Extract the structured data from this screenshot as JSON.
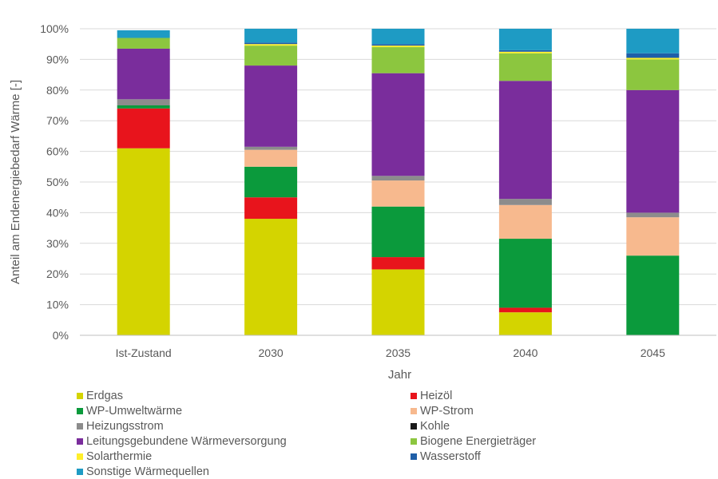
{
  "chart_data": {
    "type": "bar",
    "stacked": true,
    "title": "",
    "xlabel": "Jahr",
    "ylabel": "Anteil am Endenergiebedarf Wärme [-]",
    "ylim": [
      0,
      100
    ],
    "yticks": [
      "0%",
      "10%",
      "20%",
      "30%",
      "40%",
      "50%",
      "60%",
      "70%",
      "80%",
      "90%",
      "100%"
    ],
    "grid": true,
    "legend_position": "bottom",
    "categories": [
      "Ist-Zustand",
      "2030",
      "2035",
      "2040",
      "2045"
    ],
    "series": [
      {
        "name": "Erdgas",
        "color": "#d4d400",
        "values": [
          61,
          38,
          21.5,
          7.5,
          0
        ]
      },
      {
        "name": "Heizöl",
        "color": "#e8141c",
        "values": [
          13,
          7,
          4,
          1.5,
          0
        ]
      },
      {
        "name": "WP-Umweltwärme",
        "color": "#0b9a3c",
        "values": [
          1,
          10,
          16.5,
          22.5,
          26
        ]
      },
      {
        "name": "WP-Strom",
        "color": "#f7b98e",
        "values": [
          0,
          5.5,
          8.5,
          11,
          12.5
        ]
      },
      {
        "name": "Heizungsstrom",
        "color": "#8c8c8c",
        "values": [
          2,
          1,
          1.5,
          2,
          1.5
        ]
      },
      {
        "name": "Kohle",
        "color": "#1a1a1a",
        "values": [
          0,
          0,
          0,
          0,
          0
        ]
      },
      {
        "name": "Leitungsgebundene Wärmeversorgung",
        "color": "#7a2d9c",
        "values": [
          16.5,
          26.5,
          33.5,
          38.5,
          40
        ]
      },
      {
        "name": "Biogene Energieträger",
        "color": "#8cc63f",
        "values": [
          3.5,
          6.5,
          8.5,
          9,
          10
        ]
      },
      {
        "name": "Solarthermie",
        "color": "#ffef2a",
        "values": [
          0,
          0.5,
          0.5,
          0.5,
          0.5
        ]
      },
      {
        "name": "Wasserstoff",
        "color": "#1f5fa8",
        "values": [
          0,
          0.5,
          0.5,
          0.5,
          1.5
        ]
      },
      {
        "name": "Sonstige Wärmequellen",
        "color": "#1e9bc4",
        "values": [
          2.5,
          4.5,
          5,
          7,
          8
        ]
      }
    ]
  }
}
